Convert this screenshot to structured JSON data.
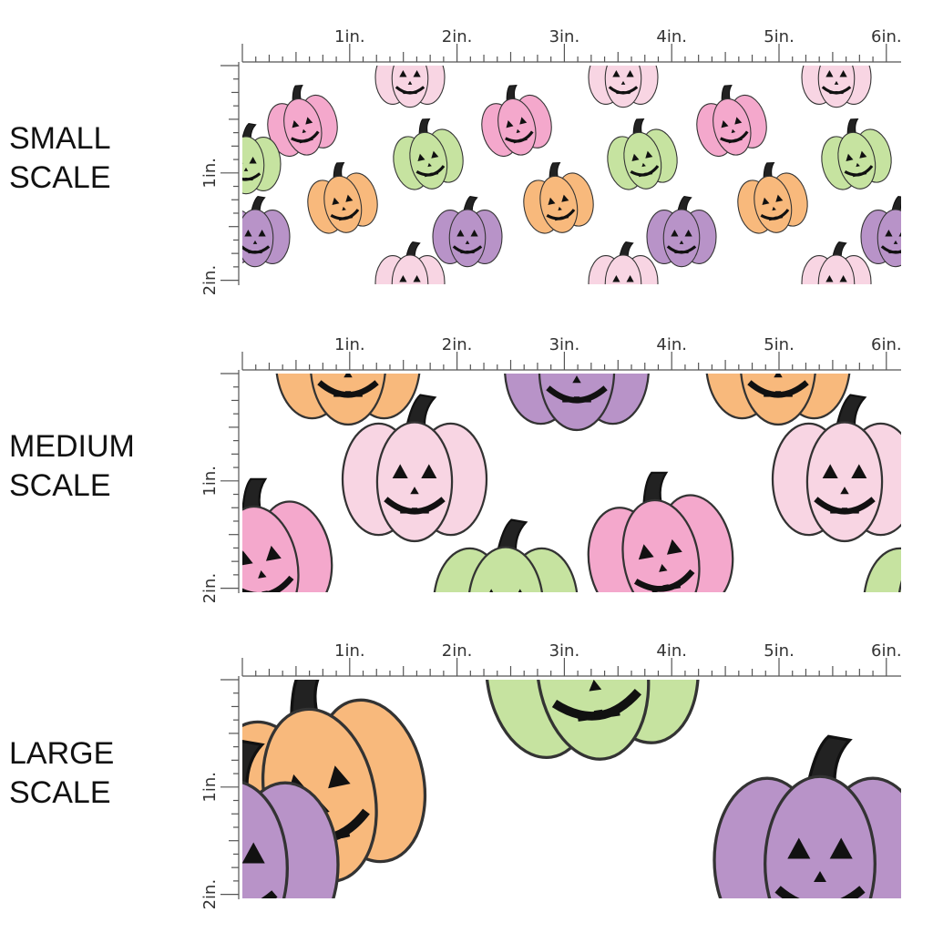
{
  "sections": [
    {
      "label_line1": "SMALL",
      "label_line2": "SCALE"
    },
    {
      "label_line1": "MEDIUM",
      "label_line2": "SCALE"
    },
    {
      "label_line1": "LARGE",
      "label_line2": "SCALE"
    }
  ],
  "ruler": {
    "top_labels": [
      "1in.",
      "2in.",
      "3in.",
      "4in.",
      "5in.",
      "6in."
    ],
    "side_labels": [
      "1in.",
      "2in."
    ]
  },
  "palette": {
    "pink": "#f4a8cc",
    "light_pink": "#f8d5e3",
    "green": "#c6e3a0",
    "orange": "#f8b97c",
    "purple": "#b893c8",
    "outline": "#333333",
    "face": "#111111"
  },
  "icons": [
    "pumpkin-icon",
    "jack-o-lantern-face-icon"
  ]
}
